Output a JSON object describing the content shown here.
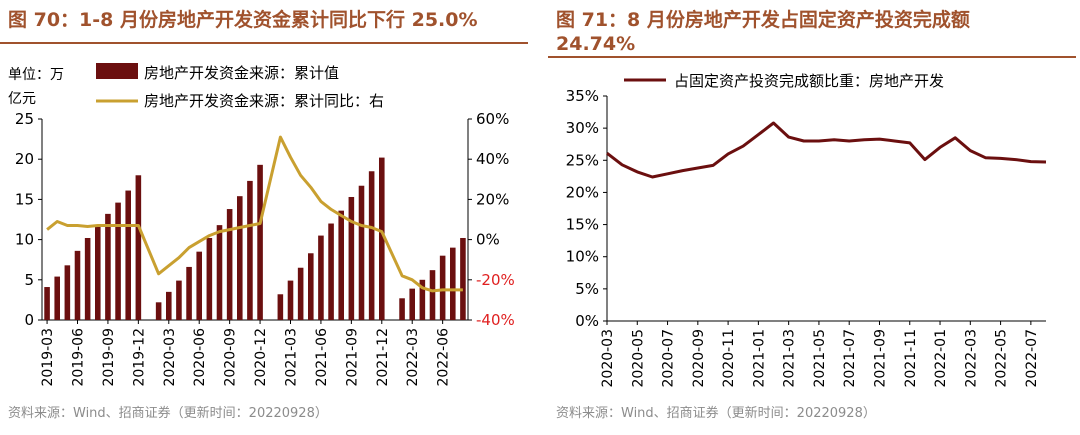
{
  "charts": [
    {
      "title": "图 70：1-8 月份房地产开发资金累计同比下行 25.0%",
      "source": "资料来源：Wind、招商证券（更新时间：20220928）",
      "unit_label_line1": "单位：万",
      "unit_label_line2": "亿元"
    },
    {
      "title_line1": "图 71：8 月份房地产开发占固定资产投资完成额",
      "title_line2": "24.74%",
      "source": "资料来源：Wind、招商证券（更新时间：20220928）"
    }
  ],
  "colors": {
    "bar": "#6b0f0f",
    "line_gold": "#c9a030",
    "line_dark": "#6b0f0f",
    "right_axis": "#e02020",
    "title": "#a0522d"
  },
  "chart_data": [
    {
      "type": "bar",
      "title": "图 70：1-8 月份房地产开发资金累计同比下行 25.0%",
      "categories": [
        "2019-03",
        "2019-04",
        "2019-05",
        "2019-06",
        "2019-07",
        "2019-08",
        "2019-09",
        "2019-10",
        "2019-11",
        "2019-12",
        "2020-01",
        "2020-02",
        "2020-03",
        "2020-04",
        "2020-05",
        "2020-06",
        "2020-07",
        "2020-08",
        "2020-09",
        "2020-10",
        "2020-11",
        "2020-12",
        "2021-01",
        "2021-02",
        "2021-03",
        "2021-04",
        "2021-05",
        "2021-06",
        "2021-07",
        "2021-08",
        "2021-09",
        "2021-10",
        "2021-11",
        "2021-12",
        "2022-01",
        "2022-02",
        "2022-03",
        "2022-04",
        "2022-05",
        "2022-06",
        "2022-07",
        "2022-08"
      ],
      "tick_labels": [
        "2019-03",
        "2019-06",
        "2019-09",
        "2019-12",
        "2020-03",
        "2020-06",
        "2020-09",
        "2020-12",
        "2021-03",
        "2021-06",
        "2021-09",
        "2021-12",
        "2022-03",
        "2022-06"
      ],
      "series": [
        {
          "name": "房地产开发资金来源：累计值",
          "axis": "left",
          "values": [
            4.1,
            5.4,
            6.8,
            8.6,
            10.2,
            11.6,
            13.2,
            14.6,
            16.1,
            18.0,
            null,
            2.2,
            3.5,
            4.9,
            6.6,
            8.5,
            10.2,
            11.8,
            13.8,
            15.4,
            17.3,
            19.3,
            null,
            3.2,
            4.9,
            6.5,
            8.3,
            10.5,
            12.0,
            13.6,
            15.3,
            16.7,
            18.5,
            20.2,
            null,
            2.7,
            3.9,
            5.0,
            6.2,
            8.0,
            9.0,
            10.2
          ]
        },
        {
          "name": "房地产开发资金来源：累计同比：右",
          "axis": "right",
          "values": [
            5,
            9,
            7,
            7,
            6.5,
            7,
            7,
            7,
            7,
            7,
            null,
            -17,
            -13,
            -9,
            -4,
            -1,
            2,
            4,
            5,
            6,
            7,
            8,
            null,
            51,
            41,
            32,
            26,
            19,
            15,
            12,
            9,
            7,
            6,
            4,
            null,
            -18,
            -20,
            -24,
            -25.5,
            -25,
            -25,
            -25
          ]
        }
      ],
      "ylim_left": [
        0,
        25
      ],
      "yticks_left": [
        0,
        5,
        10,
        15,
        20,
        25
      ],
      "ylim_right": [
        -40,
        60
      ],
      "yticks_right": [
        "-40%",
        "-20%",
        "0%",
        "20%",
        "40%",
        "60%"
      ],
      "legend_position": "top"
    },
    {
      "type": "line",
      "title": "图 71：8 月份房地产开发占固定资产投资完成额 24.74%",
      "categories": [
        "2020-03",
        "2020-04",
        "2020-05",
        "2020-06",
        "2020-07",
        "2020-08",
        "2020-09",
        "2020-10",
        "2020-11",
        "2020-12",
        "2021-01",
        "2021-02",
        "2021-03",
        "2021-04",
        "2021-05",
        "2021-06",
        "2021-07",
        "2021-08",
        "2021-09",
        "2021-10",
        "2021-11",
        "2021-12",
        "2022-01",
        "2022-02",
        "2022-03",
        "2022-04",
        "2022-05",
        "2022-06",
        "2022-07",
        "2022-08"
      ],
      "tick_labels": [
        "2020-03",
        "2020-05",
        "2020-07",
        "2020-09",
        "2020-11",
        "2021-01",
        "2021-03",
        "2021-05",
        "2021-07",
        "2021-09",
        "2021-11",
        "2022-01",
        "2022-03",
        "2022-05",
        "2022-07"
      ],
      "series": [
        {
          "name": "占固定资产投资完成额比重：房地产开发",
          "values": [
            26.1,
            24.3,
            23.2,
            22.4,
            22.9,
            23.4,
            23.8,
            24.2,
            26.0,
            27.2,
            29.0,
            30.8,
            28.6,
            28.0,
            28.0,
            28.2,
            28.0,
            28.2,
            28.3,
            28.0,
            27.7,
            25.1,
            27.0,
            28.5,
            26.5,
            25.4,
            25.3,
            25.1,
            24.8,
            24.74
          ]
        }
      ],
      "ylim": [
        0,
        35
      ],
      "yticks": [
        "0%",
        "5%",
        "10%",
        "15%",
        "20%",
        "25%",
        "30%",
        "35%"
      ],
      "grid": false,
      "legend_position": "top"
    }
  ]
}
